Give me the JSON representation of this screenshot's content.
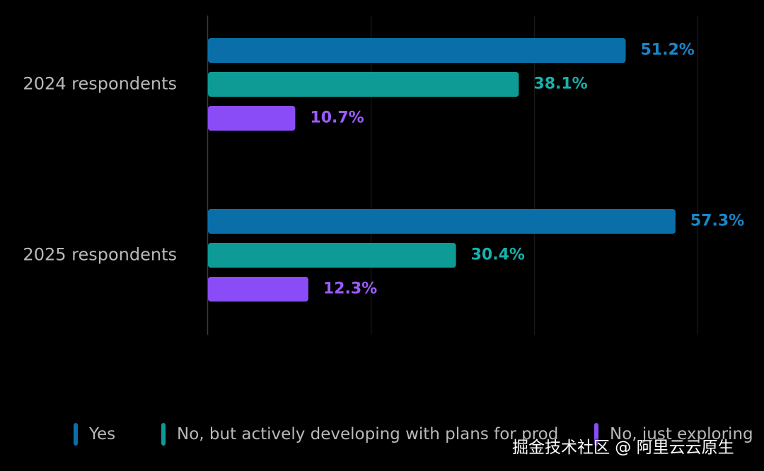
{
  "chart_data": {
    "type": "bar",
    "orientation": "horizontal",
    "categories": [
      "2024 respondents",
      "2025 respondents"
    ],
    "series": [
      {
        "name": "Yes",
        "values": [
          51.2,
          57.3
        ],
        "labels": [
          "51.2%",
          "57.3%"
        ],
        "color": "#0a6fa8"
      },
      {
        "name": "No, but actively developing with plans for prod",
        "values": [
          38.1,
          30.4
        ],
        "labels": [
          "38.1%",
          "30.4%"
        ],
        "color": "#0e9b95"
      },
      {
        "name": "No, just exploring",
        "values": [
          10.7,
          12.3
        ],
        "labels": [
          "10.7%",
          "12.3%"
        ],
        "color": "#8a4cf7"
      }
    ],
    "label_colors": [
      "#1a86c8",
      "#14b3ac",
      "#9b5cff"
    ],
    "xlim": [
      0,
      60
    ],
    "grid": true,
    "legend_position": "bottom",
    "title": "",
    "xlabel": "",
    "ylabel": ""
  },
  "watermark": "掘金技术社区 @ 阿里云云原生"
}
